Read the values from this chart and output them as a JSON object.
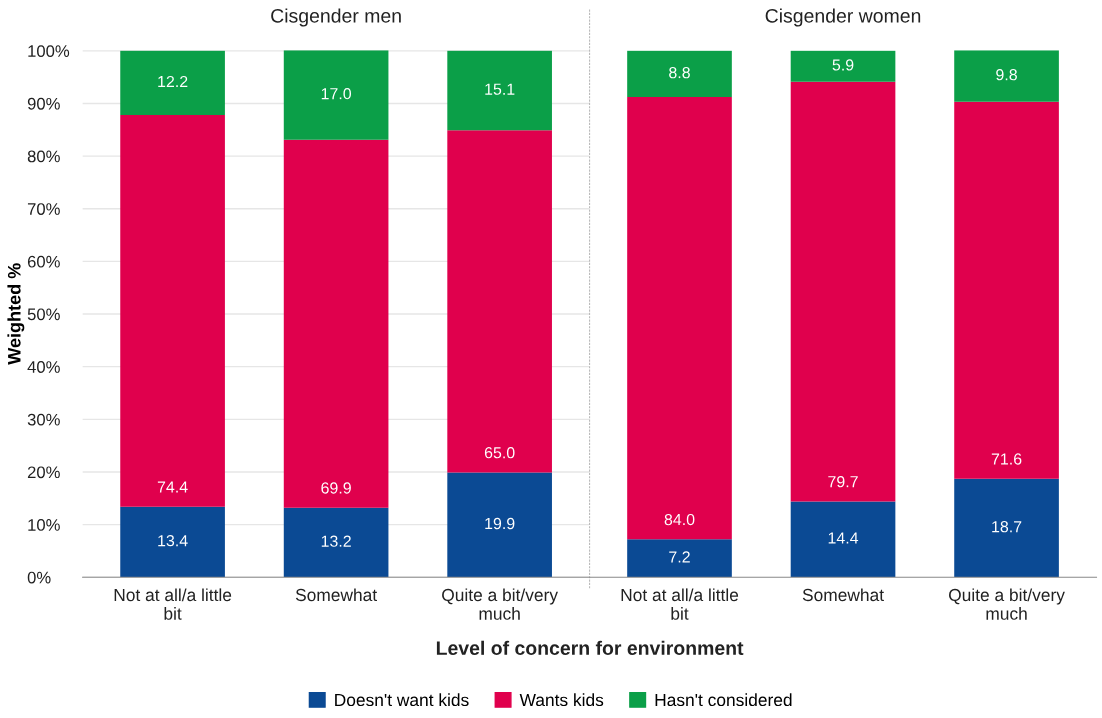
{
  "chart_data": [
    {
      "type": "bar",
      "stacked": true,
      "title": "Cisgender men",
      "xlabel": "Level of concern for environment",
      "ylabel": "Weighted %",
      "categories": [
        "Not at all/a little bit",
        "Somewhat",
        "Quite a bit/very much"
      ],
      "ylim": [
        0,
        100.1
      ],
      "yticks": [
        {
          "value": 0,
          "label": "0%"
        },
        {
          "value": 10,
          "label": "10%"
        },
        {
          "value": 20,
          "label": "20%"
        },
        {
          "value": 30,
          "label": "30%"
        },
        {
          "value": 40,
          "label": "40%"
        },
        {
          "value": 50,
          "label": "50%"
        },
        {
          "value": 60,
          "label": "60%"
        },
        {
          "value": 70,
          "label": "70%"
        },
        {
          "value": 80,
          "label": "80%"
        },
        {
          "value": 90,
          "label": "90%"
        },
        {
          "value": 100,
          "label": "100%"
        }
      ],
      "grid": "y",
      "legend": "bottom",
      "series": [
        {
          "name": "Doesn't want kids",
          "color": "#0b4a94",
          "values": [
            13.4,
            13.2,
            19.9
          ],
          "value_labels": [
            "13.4",
            "13.2",
            "19.9"
          ]
        },
        {
          "name": "Wants kids",
          "color": "#e0004d",
          "values": [
            74.4,
            69.9,
            65.0
          ],
          "value_labels": [
            "74.4",
            "69.9",
            "65.0"
          ]
        },
        {
          "name": "Hasn't considered",
          "color": "#0b9f48",
          "values": [
            12.2,
            17.0,
            15.1
          ],
          "value_labels": [
            "12.2",
            "17.0",
            "15.1"
          ]
        }
      ]
    },
    {
      "type": "bar",
      "stacked": true,
      "title": "Cisgender women",
      "categories": [
        "Not at all/a little bit",
        "Somewhat",
        "Quite a bit/very much"
      ],
      "ylim": [
        0,
        100.1
      ],
      "grid": "y",
      "tick_labels": "x",
      "series": [
        {
          "color": "#0b4a94",
          "values": [
            7.2,
            14.4,
            18.7
          ],
          "value_labels": [
            "7.2",
            "14.4",
            "18.7"
          ]
        },
        {
          "color": "#e0004d",
          "values": [
            84.0,
            79.7,
            71.6
          ],
          "value_labels": [
            "84.0",
            "79.7",
            "71.6"
          ]
        },
        {
          "color": "#0b9f48",
          "values": [
            8.8,
            5.9,
            9.8
          ],
          "value_labels": [
            "8.8",
            "5.9",
            "9.8"
          ]
        }
      ]
    }
  ]
}
